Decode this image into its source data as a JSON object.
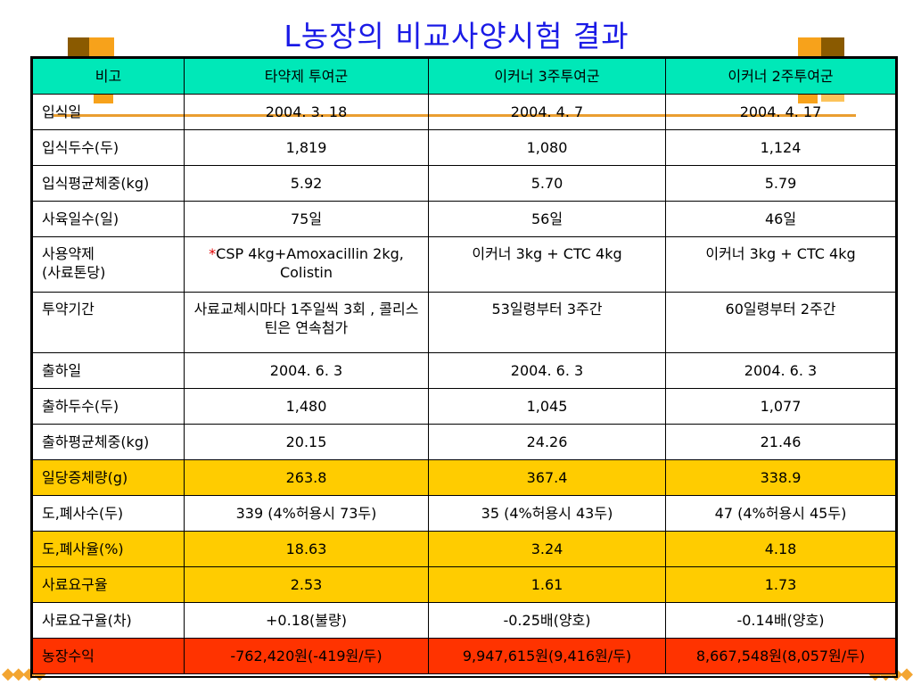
{
  "title": "L농장의 비교사양시험 결과",
  "table": {
    "headers": [
      "비고",
      "타약제 투여군",
      "이커너 3주투여군",
      "이커너 2주투여군"
    ],
    "rows": [
      {
        "label": "입식일",
        "values": [
          "2004. 3. 18",
          "2004. 4. 7",
          "2004. 4. 17"
        ]
      },
      {
        "label": "입식두수(두)",
        "values": [
          "1,819",
          "1,080",
          "1,124"
        ]
      },
      {
        "label": "입식평균체중(kg)",
        "values": [
          "5.92",
          "5.70",
          "5.79"
        ]
      },
      {
        "label": "사육일수(일)",
        "values": [
          "75일",
          "56일",
          "46일"
        ]
      },
      {
        "label_line1": "사용약제",
        "label_line2": "(사료톤당)",
        "asterisk": "*",
        "value1": "CSP 4kg+Amoxacillin 2kg, Colistin",
        "value2": "이커너 3kg + CTC 4kg",
        "value3": "이커너 3kg + CTC 4kg"
      },
      {
        "label": "투약기간",
        "values": [
          "사료교체시마다 1주일씩 3회 , 콜리스틴은 연속첨가",
          "53일령부터 3주간",
          "60일령부터 2주간"
        ]
      },
      {
        "label": "출하일",
        "values": [
          "2004. 6. 3",
          "2004. 6. 3",
          "2004. 6. 3"
        ]
      },
      {
        "label": "출하두수(두)",
        "values": [
          "1,480",
          "1,045",
          "1,077"
        ]
      },
      {
        "label": "출하평균체중(kg)",
        "values": [
          "20.15",
          "24.26",
          "21.46"
        ]
      },
      {
        "label": "일당증체량(g)",
        "values": [
          "263.8",
          "367.4",
          "338.9"
        ]
      },
      {
        "label": "도,폐사수(두)",
        "values": [
          "339 (4%허용시 73두)",
          "35 (4%허용시 43두)",
          "47 (4%허용시 45두)"
        ]
      },
      {
        "label": "도,폐사율(%)",
        "values": [
          "18.63",
          "3.24",
          "4.18"
        ]
      },
      {
        "label": "사료요구율",
        "values": [
          "2.53",
          "1.61",
          "1.73"
        ]
      },
      {
        "label": "사료요구율(차)",
        "values": [
          "+0.18(불량)",
          "-0.25배(양호)",
          "-0.14배(양호)"
        ]
      },
      {
        "label": "농장수익",
        "values": [
          "-762,420원(-419원/두)",
          "9,947,615원(9,416원/두)",
          "8,667,548원(8,057원/두)"
        ]
      }
    ]
  },
  "colors": {
    "title": "#1a1ae6",
    "header_bg": "#00e8b8",
    "highlight_yellow": "#ffcc00",
    "highlight_red": "#ff3300",
    "accent_orange": "#f7a21b"
  }
}
